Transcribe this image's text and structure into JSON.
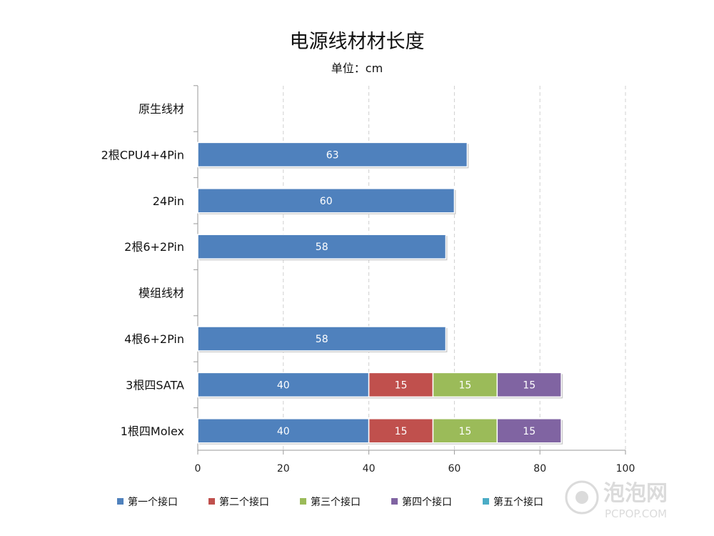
{
  "chart_data": {
    "type": "bar",
    "orientation": "horizontal",
    "stacked": true,
    "title": "电源线材材长度",
    "subtitle": "单位：cm",
    "categories": [
      "原生线材",
      "2根CPU4+4Pin",
      "24Pin",
      "2根6+2Pin",
      "模组线材",
      "4根6+2Pin",
      "3根四SATA",
      "1根四Molex"
    ],
    "series": [
      {
        "name": "第一个接口",
        "color": "#4f81bd",
        "values": [
          null,
          63,
          60,
          58,
          null,
          58,
          40,
          40
        ]
      },
      {
        "name": "第二个接口",
        "color": "#c0504d",
        "values": [
          null,
          null,
          null,
          null,
          null,
          null,
          15,
          15
        ]
      },
      {
        "name": "第三个接口",
        "color": "#9bbb59",
        "values": [
          null,
          null,
          null,
          null,
          null,
          null,
          15,
          15
        ]
      },
      {
        "name": "第四个接口",
        "color": "#8064a2",
        "values": [
          null,
          null,
          null,
          null,
          null,
          null,
          15,
          15
        ]
      },
      {
        "name": "第五个接口",
        "color": "#4bacc6",
        "values": [
          null,
          null,
          null,
          null,
          null,
          null,
          null,
          null
        ]
      }
    ],
    "xlim": [
      0,
      100
    ],
    "xticks": [
      0,
      20,
      40,
      60,
      80,
      100
    ],
    "grid": "vertical dashed",
    "legend_position": "bottom"
  },
  "watermark": {
    "brand": "泡泡网",
    "site": "PCPOP.COM"
  }
}
